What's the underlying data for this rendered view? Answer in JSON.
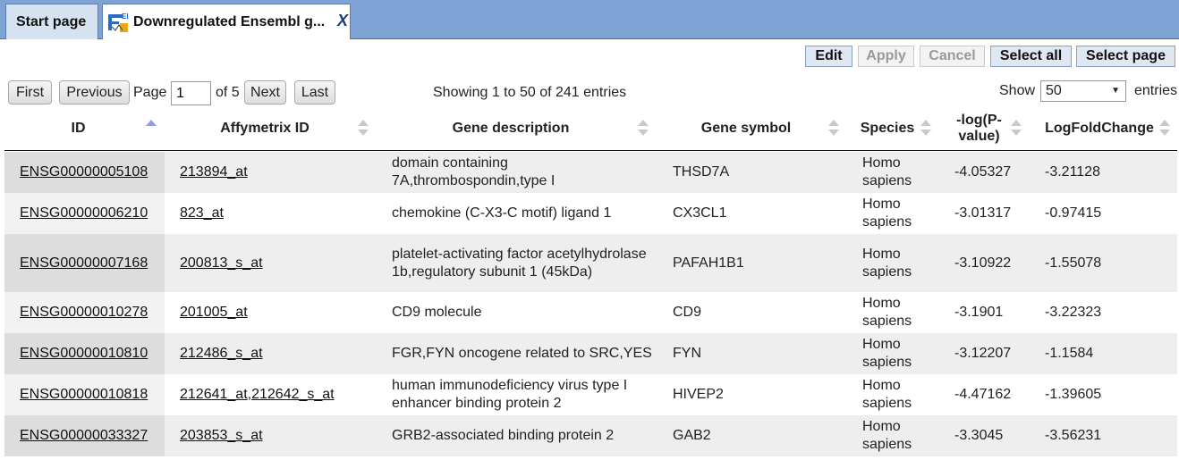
{
  "tabs": [
    {
      "label": "Start page"
    },
    {
      "label": "Downregulated Ensembl g...",
      "close": "X"
    }
  ],
  "toolbar": {
    "edit": "Edit",
    "apply": "Apply",
    "cancel": "Cancel",
    "select_all": "Select all",
    "select_page": "Select page"
  },
  "pager": {
    "first": "First",
    "previous": "Previous",
    "page_label": "Page",
    "page_value": "1",
    "of_label": "of 5",
    "next": "Next",
    "last": "Last",
    "showing": "Showing 1 to 50 of 241 entries",
    "show_label": "Show",
    "show_value": "50",
    "entries_label": "entries"
  },
  "columns": {
    "id": "ID",
    "affy": "Affymetrix ID",
    "desc": "Gene description",
    "symbol": "Gene symbol",
    "species": "Species",
    "pval": "-log(P-value)",
    "lfc": "LogFoldChange"
  },
  "rows": [
    {
      "id": "ENSG00000005108",
      "affy": [
        "213894_at"
      ],
      "desc": "domain containing 7A,thrombospondin,type I",
      "symbol": "THSD7A",
      "species": "Homo sapiens",
      "pval": "-4.05327",
      "lfc": "-3.21128"
    },
    {
      "id": "ENSG00000006210",
      "affy": [
        "823_at"
      ],
      "desc": "chemokine (C-X3-C motif) ligand 1",
      "symbol": "CX3CL1",
      "species": "Homo sapiens",
      "pval": "-3.01317",
      "lfc": "-0.97415"
    },
    {
      "id": "ENSG00000007168",
      "affy": [
        "200813_s_at"
      ],
      "desc": "platelet-activating factor acetylhydrolase 1b,regulatory subunit 1 (45kDa)",
      "symbol": "PAFAH1B1",
      "species": "Homo sapiens",
      "pval": "-3.10922",
      "lfc": "-1.55078"
    },
    {
      "id": "ENSG00000010278",
      "affy": [
        "201005_at"
      ],
      "desc": "CD9 molecule",
      "symbol": "CD9",
      "species": "Homo sapiens",
      "pval": "-3.1901",
      "lfc": "-3.22323"
    },
    {
      "id": "ENSG00000010810",
      "affy": [
        "212486_s_at"
      ],
      "desc": "FGR,FYN oncogene related to SRC,YES",
      "symbol": "FYN",
      "species": "Homo sapiens",
      "pval": "-3.12207",
      "lfc": "-1.1584"
    },
    {
      "id": "ENSG00000010818",
      "affy": [
        "212641_at",
        "212642_s_at"
      ],
      "desc": "human immunodeficiency virus type I enhancer binding protein 2",
      "symbol": "HIVEP2",
      "species": "Homo sapiens",
      "pval": "-4.47162",
      "lfc": "-1.39605"
    },
    {
      "id": "ENSG00000033327",
      "affy": [
        "203853_s_at"
      ],
      "desc": "GRB2-associated binding protein 2",
      "symbol": "GAB2",
      "species": "Homo sapiens",
      "pval": "-3.3045",
      "lfc": "-3.56231"
    }
  ]
}
